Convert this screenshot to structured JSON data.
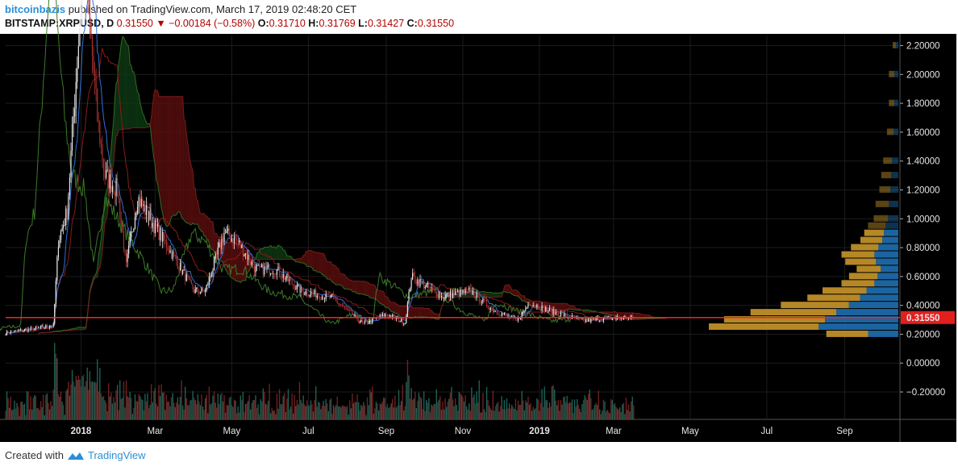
{
  "header": {
    "author": "bitcoinbazis",
    "published": "published on TradingView.com, March 17, 2019 02:48:20 CET",
    "symbol": "BITSTAMP:XRPUSD, D",
    "last": "0.31550",
    "change": "−0.00184 (−0.58%)",
    "open_label": "O:",
    "open": "0.31710",
    "high_label": "H:",
    "high": "0.31769",
    "low_label": "L:",
    "low": "0.31427",
    "close_label": "C:",
    "close": "0.31550"
  },
  "footer": {
    "created_with": "Created with",
    "brand": "TradingView"
  },
  "colors": {
    "background": "#000000",
    "cloud_bear": "#5a0e0e",
    "cloud_bull": "#0e3a14",
    "kijun": "#8b1a1a",
    "tenkan": "#2f6fd6",
    "chikou": "#3c7a28",
    "price_line": "#ff2020",
    "volume_profile_gold": "#c9962a",
    "volume_profile_blue": "#1f6fb0",
    "candle_up": "#e8e8e8",
    "candle_down": "#a83030"
  },
  "chart_data": {
    "type": "candlestick",
    "symbol": "BITSTAMP:XRPUSD",
    "interval": "D",
    "x_ticks": [
      "2018",
      "Mar",
      "May",
      "Jul",
      "Sep",
      "Nov",
      "2019",
      "Mar",
      "May",
      "Jul",
      "Sep"
    ],
    "x_tick_dates": [
      "2018-01-01",
      "2018-03-01",
      "2018-05-01",
      "2018-07-01",
      "2018-09-01",
      "2018-11-01",
      "2019-01-01",
      "2019-03-01",
      "2019-05-01",
      "2019-07-01",
      "2019-09-01"
    ],
    "bold_ticks": [
      "2018",
      "2019"
    ],
    "y_ticks": [
      "2.20000",
      "2.00000",
      "1.80000",
      "1.60000",
      "1.40000",
      "1.20000",
      "1.00000",
      "0.80000",
      "0.60000",
      "0.40000",
      "0.20000",
      "0.00000",
      "−0.20000"
    ],
    "y_tick_values": [
      2.2,
      2.0,
      1.8,
      1.6,
      1.4,
      1.2,
      1.0,
      0.8,
      0.6,
      0.4,
      0.2,
      0.0,
      -0.2
    ],
    "ylim": [
      -0.39,
      2.27
    ],
    "xlim": [
      "2017-11-02",
      "2019-10-15"
    ],
    "current_price": 0.3155,
    "current_price_label": "0.31550",
    "price_path": [
      [
        "2017-11-02",
        0.21
      ],
      [
        "2017-11-25",
        0.24
      ],
      [
        "2017-12-10",
        0.26
      ],
      [
        "2017-12-14",
        0.85
      ],
      [
        "2017-12-21",
        1.05
      ],
      [
        "2017-12-29",
        2.1
      ],
      [
        "2018-01-04",
        2.9
      ],
      [
        "2018-01-07",
        2.45
      ],
      [
        "2018-01-14",
        1.7
      ],
      [
        "2018-01-20",
        1.3
      ],
      [
        "2018-01-30",
        1.2
      ],
      [
        "2018-02-06",
        0.67
      ],
      [
        "2018-02-15",
        1.15
      ],
      [
        "2018-02-25",
        1.0
      ],
      [
        "2018-03-15",
        0.75
      ],
      [
        "2018-04-01",
        0.5
      ],
      [
        "2018-04-10",
        0.5
      ],
      [
        "2018-04-25",
        0.9
      ],
      [
        "2018-05-05",
        0.85
      ],
      [
        "2018-05-20",
        0.65
      ],
      [
        "2018-06-05",
        0.65
      ],
      [
        "2018-06-25",
        0.5
      ],
      [
        "2018-07-20",
        0.45
      ],
      [
        "2018-08-14",
        0.27
      ],
      [
        "2018-09-01",
        0.34
      ],
      [
        "2018-09-16",
        0.28
      ],
      [
        "2018-09-21",
        0.6
      ],
      [
        "2018-09-30",
        0.55
      ],
      [
        "2018-10-15",
        0.46
      ],
      [
        "2018-11-07",
        0.5
      ],
      [
        "2018-11-25",
        0.37
      ],
      [
        "2018-12-14",
        0.29
      ],
      [
        "2018-12-24",
        0.42
      ],
      [
        "2019-01-10",
        0.36
      ],
      [
        "2019-02-05",
        0.29
      ],
      [
        "2019-02-24",
        0.31
      ],
      [
        "2019-03-17",
        0.3155
      ]
    ],
    "volume_profile": [
      {
        "price": 0.2,
        "value": 38
      },
      {
        "price": 0.25,
        "value": 100
      },
      {
        "price": 0.3,
        "value": 92
      },
      {
        "price": 0.35,
        "value": 78
      },
      {
        "price": 0.4,
        "value": 62
      },
      {
        "price": 0.45,
        "value": 48
      },
      {
        "price": 0.5,
        "value": 40
      },
      {
        "price": 0.55,
        "value": 30
      },
      {
        "price": 0.6,
        "value": 26
      },
      {
        "price": 0.65,
        "value": 22
      },
      {
        "price": 0.7,
        "value": 28
      },
      {
        "price": 0.75,
        "value": 30
      },
      {
        "price": 0.8,
        "value": 25
      },
      {
        "price": 0.85,
        "value": 20
      },
      {
        "price": 0.9,
        "value": 18
      },
      {
        "price": 0.95,
        "value": 16
      },
      {
        "price": 1.0,
        "value": 13
      },
      {
        "price": 1.1,
        "value": 12
      },
      {
        "price": 1.2,
        "value": 10
      },
      {
        "price": 1.3,
        "value": 9
      },
      {
        "price": 1.4,
        "value": 8
      },
      {
        "price": 1.6,
        "value": 6
      },
      {
        "price": 1.8,
        "value": 5
      },
      {
        "price": 2.0,
        "value": 5
      },
      {
        "price": 2.2,
        "value": 3
      }
    ]
  }
}
